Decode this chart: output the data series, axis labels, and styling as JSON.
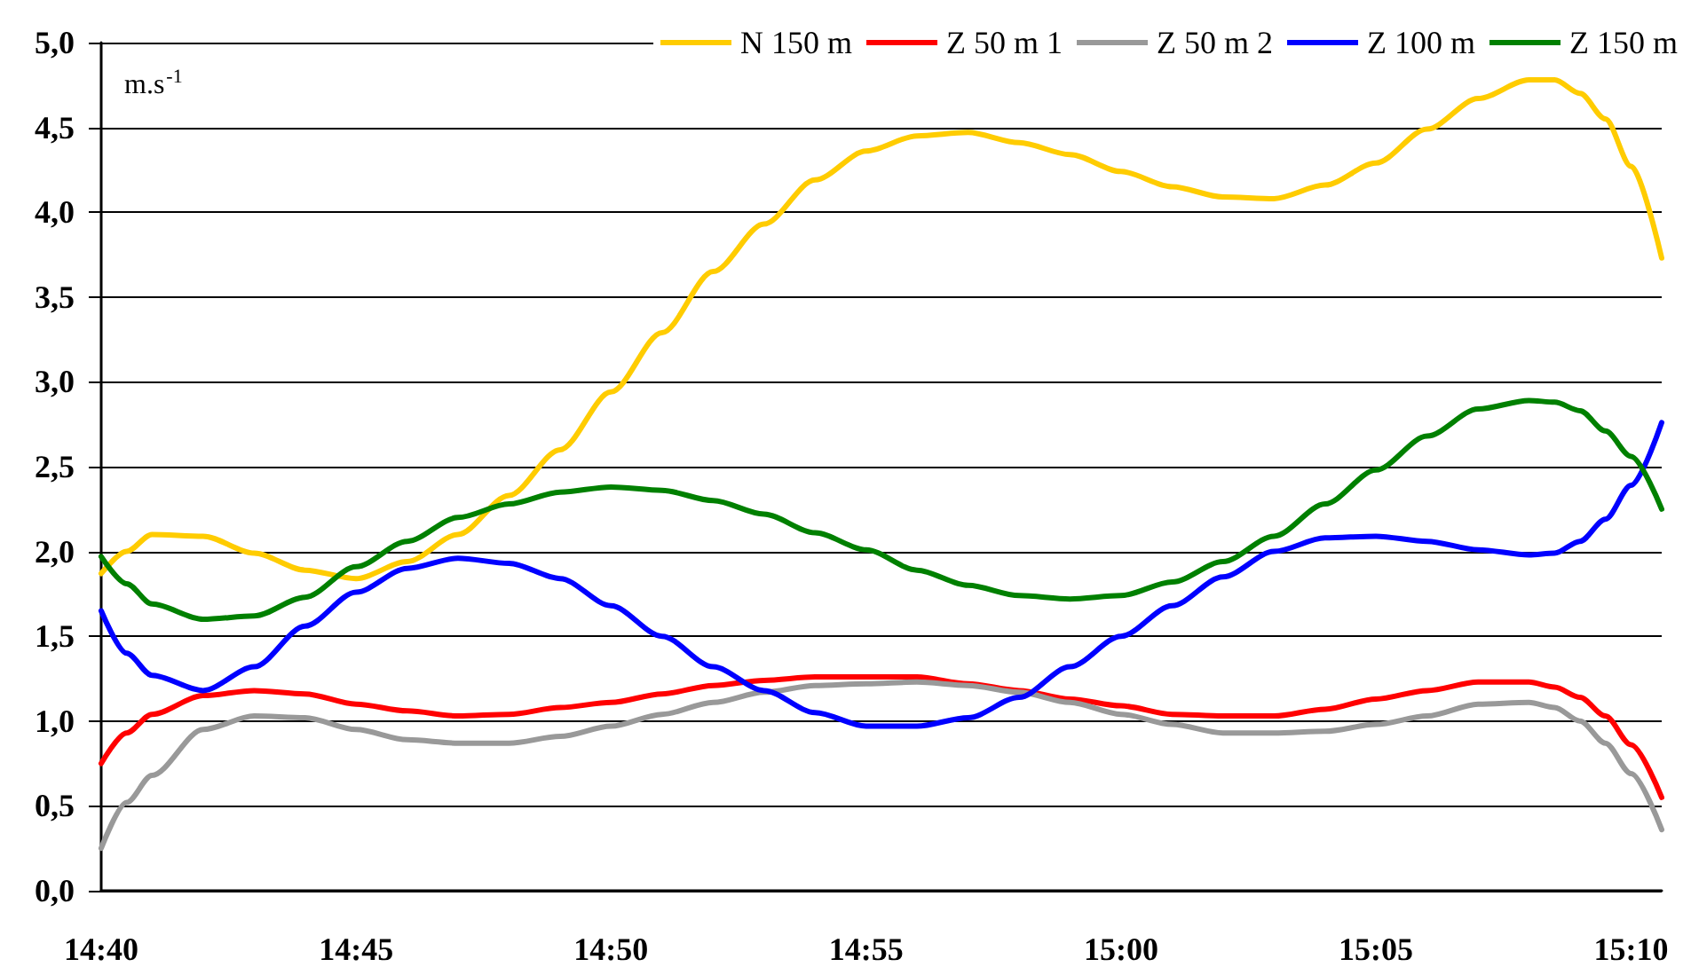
{
  "chart_data": {
    "type": "line",
    "ylabel": "m.s$^{-1}$",
    "x": [
      14.6667,
      14.675,
      14.6833,
      14.7,
      14.7167,
      14.7333,
      14.75,
      14.7667,
      14.7833,
      14.8,
      14.8167,
      14.8333,
      14.85,
      14.8667,
      14.8833,
      14.9,
      14.9167,
      14.9333,
      14.95,
      14.9667,
      14.9833,
      15,
      15.0167,
      15.0333,
      15.05,
      15.0667,
      15.0833,
      15.1,
      15.1167,
      15.1333,
      15.1417,
      15.15,
      15.1583,
      15.1667,
      15.1767
    ],
    "series": [
      {
        "name": "N 150 m",
        "color": "#ffcc00",
        "values": [
          1.87,
          2.0,
          2.1,
          2.09,
          1.99,
          1.89,
          1.84,
          1.94,
          2.1,
          2.33,
          2.6,
          2.94,
          3.29,
          3.65,
          3.93,
          4.19,
          4.36,
          4.45,
          4.47,
          4.41,
          4.34,
          4.24,
          4.15,
          4.09,
          4.08,
          4.16,
          4.29,
          4.49,
          4.67,
          4.78,
          4.78,
          4.7,
          4.55,
          4.27,
          3.73
        ]
      },
      {
        "name": "Z 50 m 1",
        "color": "#ff0000",
        "values": [
          0.75,
          0.93,
          1.04,
          1.15,
          1.18,
          1.16,
          1.1,
          1.06,
          1.03,
          1.04,
          1.08,
          1.11,
          1.16,
          1.21,
          1.24,
          1.26,
          1.26,
          1.26,
          1.22,
          1.18,
          1.13,
          1.09,
          1.04,
          1.03,
          1.03,
          1.07,
          1.13,
          1.18,
          1.23,
          1.23,
          1.2,
          1.14,
          1.03,
          0.86,
          0.55
        ]
      },
      {
        "name": "Z 50 m 2",
        "color": "#999999",
        "values": [
          0.25,
          0.52,
          0.68,
          0.95,
          1.03,
          1.02,
          0.95,
          0.89,
          0.87,
          0.87,
          0.91,
          0.97,
          1.04,
          1.11,
          1.17,
          1.21,
          1.22,
          1.23,
          1.21,
          1.17,
          1.11,
          1.04,
          0.98,
          0.93,
          0.93,
          0.94,
          0.98,
          1.03,
          1.1,
          1.11,
          1.08,
          1.0,
          0.87,
          0.69,
          0.36
        ]
      },
      {
        "name": "Z 100 m",
        "color": "#0000ff",
        "values": [
          1.65,
          1.4,
          1.27,
          1.18,
          1.32,
          1.56,
          1.76,
          1.9,
          1.96,
          1.93,
          1.84,
          1.68,
          1.5,
          1.32,
          1.18,
          1.05,
          0.97,
          0.97,
          1.02,
          1.14,
          1.32,
          1.5,
          1.68,
          1.85,
          2.0,
          2.08,
          2.09,
          2.06,
          2.01,
          1.98,
          1.99,
          2.06,
          2.19,
          2.39,
          2.76
        ]
      },
      {
        "name": "Z 150 m",
        "color": "#008000",
        "values": [
          1.97,
          1.81,
          1.69,
          1.6,
          1.62,
          1.73,
          1.91,
          2.06,
          2.2,
          2.28,
          2.35,
          2.38,
          2.36,
          2.3,
          2.22,
          2.11,
          2.01,
          1.89,
          1.8,
          1.74,
          1.72,
          1.74,
          1.82,
          1.94,
          2.09,
          2.28,
          2.48,
          2.68,
          2.84,
          2.89,
          2.88,
          2.83,
          2.71,
          2.56,
          2.25
        ]
      }
    ],
    "xlim": [
      14.6667,
      15.1767
    ],
    "xticks": [
      {
        "value": 14.6667,
        "label": "14:40"
      },
      {
        "value": 14.75,
        "label": "14:45"
      },
      {
        "value": 14.8333,
        "label": "14:50"
      },
      {
        "value": 14.9167,
        "label": "14:55"
      },
      {
        "value": 15,
        "label": "15:00"
      },
      {
        "value": 15.0833,
        "label": "15:05"
      },
      {
        "value": 15.1667,
        "label": "15:10"
      }
    ],
    "ylim": [
      0,
      5
    ],
    "yticks": [
      {
        "value": 0,
        "label": "0,0"
      },
      {
        "value": 0.5,
        "label": "0,5"
      },
      {
        "value": 1,
        "label": "1,0"
      },
      {
        "value": 1.5,
        "label": "1,5"
      },
      {
        "value": 2,
        "label": "2,0"
      },
      {
        "value": 2.5,
        "label": "2,5"
      },
      {
        "value": 3,
        "label": "3,0"
      },
      {
        "value": 3.5,
        "label": "3,5"
      },
      {
        "value": 4,
        "label": "4,0"
      },
      {
        "value": 4.5,
        "label": "4,5"
      },
      {
        "value": 5,
        "label": "5,0"
      }
    ],
    "grid": "y",
    "legend": "top right"
  }
}
